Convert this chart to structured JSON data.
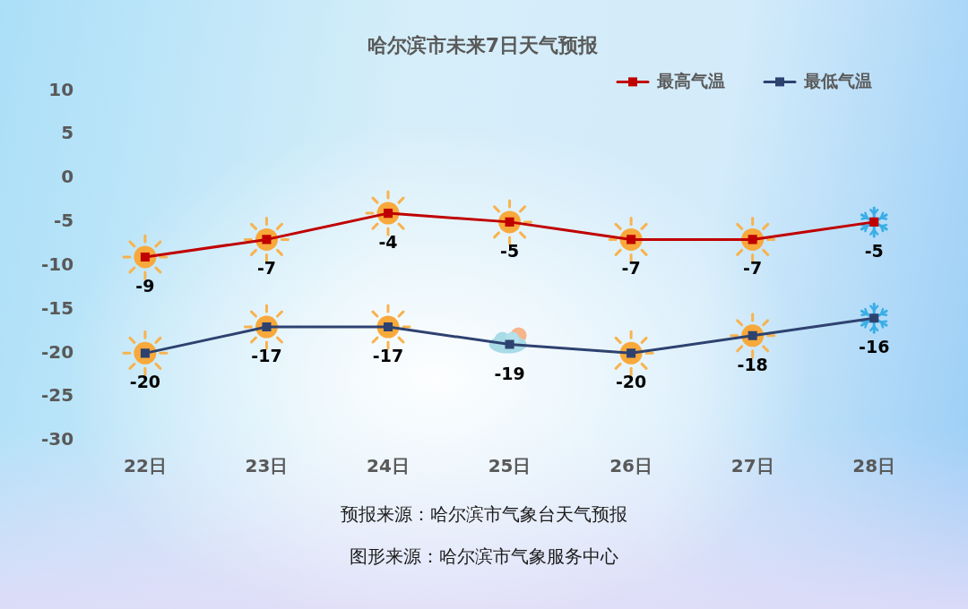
{
  "chart_data": {
    "type": "line",
    "title": "哈尔滨市未来7日天气预报",
    "categories": [
      "22日",
      "23日",
      "24日",
      "25日",
      "26日",
      "27日",
      "28日"
    ],
    "series": [
      {
        "name": "最高气温",
        "color": "#c00000",
        "values": [
          -9,
          -7,
          -4,
          -5,
          -7,
          -7,
          -5
        ]
      },
      {
        "name": "最低气温",
        "color": "#2e4270",
        "values": [
          -20,
          -17,
          -17,
          -19,
          -20,
          -18,
          -16
        ]
      }
    ],
    "ylim": [
      -30,
      10
    ],
    "yticks": [
      -30,
      -25,
      -20,
      -15,
      -10,
      -5,
      0,
      5,
      10
    ],
    "grid": false,
    "legend": "top right",
    "marker": "square",
    "data_labels": true,
    "annotations": [
      "预报来源：哈尔滨市气象台天气预报",
      "图形来源：哈尔滨市气象服务中心"
    ]
  }
}
